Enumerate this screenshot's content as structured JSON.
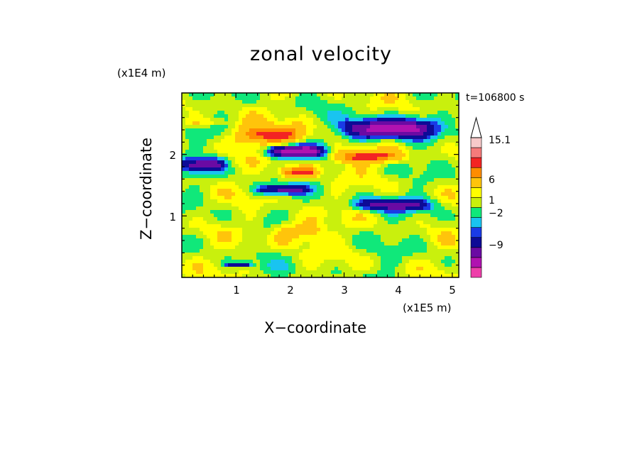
{
  "title": "zonal velocity",
  "time_label": "t=106800 s",
  "chart_data": {
    "type": "heatmap",
    "title": "zonal velocity",
    "xlabel": "X-coordinate",
    "ylabel": "Z-coordinate",
    "x_unit": "(x1E5 m)",
    "y_unit": "(x1E4 m)",
    "xlim": [
      0,
      5.12
    ],
    "ylim": [
      0,
      3.0
    ],
    "xticks": [
      "1",
      "2",
      "3",
      "4",
      "5"
    ],
    "yticks": [
      "1",
      "2"
    ],
    "colorbar": {
      "labels": [
        "15.1",
        "6",
        "1",
        "-2",
        "-9"
      ],
      "colors": [
        "#ee3faa",
        "#b012b0",
        "#6a0aa3",
        "#0d0b96",
        "#1a3be6",
        "#19c4f0",
        "#10e87a",
        "#c9f00d",
        "#ffff00",
        "#ffc40b",
        "#ff8c00",
        "#f32323",
        "#f57a7a",
        "#f7c9c9"
      ]
    },
    "bands": [
      {
        "x": [
          0.0,
          0.8
        ],
        "z": [
          2.45,
          2.6
        ],
        "value": 2
      },
      {
        "x": [
          1.0,
          2.3
        ],
        "z": [
          2.15,
          2.48
        ],
        "value": 5
      },
      {
        "x": [
          3.0,
          4.6
        ],
        "z": [
          2.25,
          2.58
        ],
        "value": -9
      },
      {
        "x": [
          1.6,
          2.6
        ],
        "z": [
          1.95,
          2.15
        ],
        "value": -9
      },
      {
        "x": [
          0.0,
          0.8
        ],
        "z": [
          1.72,
          1.95
        ],
        "value": -6
      },
      {
        "x": [
          2.8,
          4.1
        ],
        "z": [
          1.85,
          2.08
        ],
        "value": 5
      },
      {
        "x": [
          1.8,
          2.5
        ],
        "z": [
          1.62,
          1.8
        ],
        "value": 5
      },
      {
        "x": [
          1.4,
          2.3
        ],
        "z": [
          1.35,
          1.5
        ],
        "value": -6
      },
      {
        "x": [
          3.2,
          4.6
        ],
        "z": [
          1.08,
          1.28
        ],
        "value": -6
      },
      {
        "x": [
          1.7,
          2.6
        ],
        "z": [
          0.55,
          0.95
        ],
        "value": 3
      },
      {
        "x": [
          0.8,
          1.3
        ],
        "z": [
          0.18,
          0.25
        ],
        "value": -6
      }
    ]
  }
}
